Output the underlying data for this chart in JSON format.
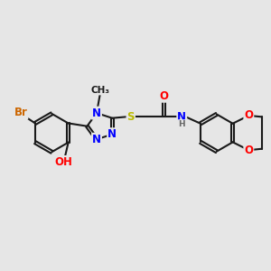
{
  "bg_color": "#e6e6e6",
  "bond_color": "#1a1a1a",
  "bond_width": 1.5,
  "atom_colors": {
    "Br": "#cc6600",
    "O": "#ff0000",
    "N": "#0000ff",
    "S": "#bbbb00",
    "H": "#666666",
    "C": "#1a1a1a"
  },
  "font_size": 8.5,
  "fig_width": 3.0,
  "fig_height": 3.0,
  "dpi": 100
}
